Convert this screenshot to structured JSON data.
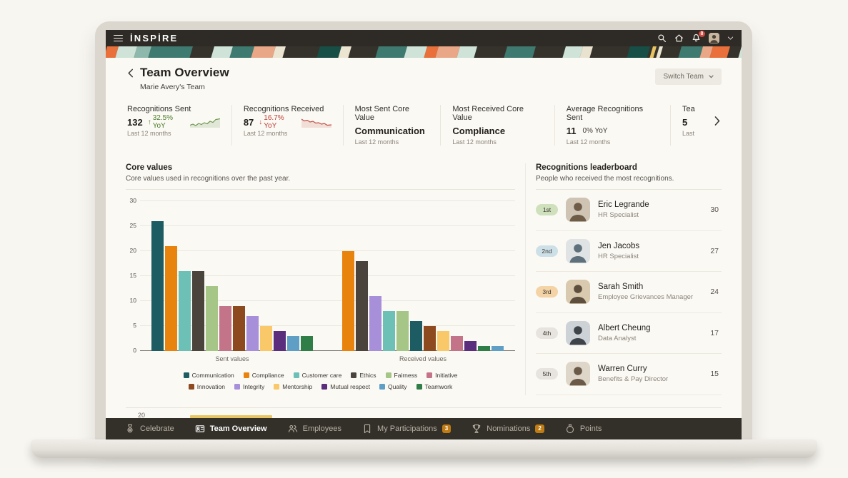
{
  "app": {
    "logo": "İNSPİRE",
    "notification_count": "8"
  },
  "page": {
    "title": "Team Overview",
    "subtitle": "Marie Avery's Team",
    "switch_team_label": "Switch Team"
  },
  "stats": [
    {
      "label": "Recognitions Sent",
      "value": "132",
      "delta": "32.5% YoY",
      "trend": "up",
      "period": "Last 12 months",
      "sparkline": "up"
    },
    {
      "label": "Recognitions Received",
      "value": "87",
      "delta": "16.7% YoY",
      "trend": "down",
      "period": "Last 12 months",
      "sparkline": "down"
    },
    {
      "label": "Most Sent Core Value",
      "value": "Communication",
      "period": "Last 12 months"
    },
    {
      "label": "Most Received Core Value",
      "value": "Compliance",
      "period": "Last 12 months"
    },
    {
      "label": "Average Recognitions Sent",
      "value": "11",
      "delta": "0% YoY",
      "trend": "flat",
      "period": "Last 12 months"
    },
    {
      "label": "Tea",
      "value": "5",
      "period": "Last",
      "clipped": true
    }
  ],
  "chart_data": {
    "type": "bar",
    "title": "Core values",
    "subtitle": "Core values used in recognitions over the past year.",
    "ylim": [
      0,
      30
    ],
    "yticks": [
      0,
      5,
      10,
      15,
      20,
      25,
      30
    ],
    "grid": true,
    "legend_position": "bottom",
    "categories": [
      "Sent values",
      "Received values"
    ],
    "groups": [
      {
        "label": "Sent values",
        "bars": [
          {
            "name": "Communication",
            "value": 26
          },
          {
            "name": "Compliance",
            "value": 21
          },
          {
            "name": "Customer care",
            "value": 16
          },
          {
            "name": "Ethics",
            "value": 16
          },
          {
            "name": "Fairness",
            "value": 13
          },
          {
            "name": "Initiative",
            "value": 9
          },
          {
            "name": "Innovation",
            "value": 9
          },
          {
            "name": "Integrity",
            "value": 7
          },
          {
            "name": "Mentorship",
            "value": 5
          },
          {
            "name": "Mutual respect",
            "value": 4
          },
          {
            "name": "Quality",
            "value": 3
          },
          {
            "name": "Teamwork",
            "value": 3
          }
        ]
      },
      {
        "label": "Received values",
        "bars": [
          {
            "name": "Compliance",
            "value": 20
          },
          {
            "name": "Ethics",
            "value": 18
          },
          {
            "name": "Integrity",
            "value": 11
          },
          {
            "name": "Customer care",
            "value": 8
          },
          {
            "name": "Fairness",
            "value": 8
          },
          {
            "name": "Communication",
            "value": 6
          },
          {
            "name": "Innovation",
            "value": 5
          },
          {
            "name": "Mentorship",
            "value": 4
          },
          {
            "name": "Initiative",
            "value": 3
          },
          {
            "name": "Mutual respect",
            "value": 2
          },
          {
            "name": "Teamwork",
            "value": 1
          },
          {
            "name": "Quality",
            "value": 1
          }
        ]
      }
    ],
    "legend": [
      "Communication",
      "Compliance",
      "Customer care",
      "Ethics",
      "Fairness",
      "Initiative",
      "Innovation",
      "Integrity",
      "Mentorship",
      "Mutual respect",
      "Quality",
      "Teamwork"
    ],
    "colors": {
      "Communication": "#1d5c62",
      "Compliance": "#e8830e",
      "Customer care": "#6cc0b5",
      "Ethics": "#4a443c",
      "Fairness": "#a6c687",
      "Initiative": "#c47488",
      "Innovation": "#8e4a1f",
      "Integrity": "#a78fd9",
      "Mentorship": "#f9c869",
      "Mutual respect": "#5a2d7d",
      "Quality": "#5f9fc6",
      "Teamwork": "#2f7d47"
    }
  },
  "leaderboard": {
    "title": "Recognitions leaderboard",
    "subtitle": "People who received the most recognitions.",
    "rows": [
      {
        "rank": "1st",
        "rank_color": "#cfe0bc",
        "name": "Eric Legrande",
        "role": "HR Specialist",
        "count": "30"
      },
      {
        "rank": "2nd",
        "rank_color": "#cde0e8",
        "name": "Jen Jacobs",
        "role": "HR Specialist",
        "count": "27"
      },
      {
        "rank": "3rd",
        "rank_color": "#f4d3a6",
        "name": "Sarah Smith",
        "role": "Employee Grievances Manager",
        "count": "24"
      },
      {
        "rank": "4th",
        "rank_color": "#e7e4df",
        "name": "Albert Cheung",
        "role": "Data Analyst",
        "count": "17"
      },
      {
        "rank": "5th",
        "rank_color": "#e7e4df",
        "name": "Warren Curry",
        "role": "Benefits & Pay Director",
        "count": "15"
      }
    ]
  },
  "peek": {
    "tick": "20"
  },
  "nav": {
    "items": [
      {
        "label": "Celebrate",
        "icon": "medal",
        "active": false
      },
      {
        "label": "Team Overview",
        "icon": "id-card",
        "active": true
      },
      {
        "label": "Employees",
        "icon": "people",
        "active": false
      },
      {
        "label": "My Participations",
        "icon": "pennant",
        "badge": "3",
        "active": false
      },
      {
        "label": "Nominations",
        "icon": "trophy",
        "badge": "2",
        "active": false
      },
      {
        "label": "Points",
        "icon": "money-bag",
        "active": false
      }
    ]
  },
  "colors": {
    "accent_gold": "#e9c463",
    "badge_orange": "#c07c12",
    "alert_red": "#d9453c",
    "delta_up": "#4d7d2c",
    "delta_down": "#bf4138"
  }
}
